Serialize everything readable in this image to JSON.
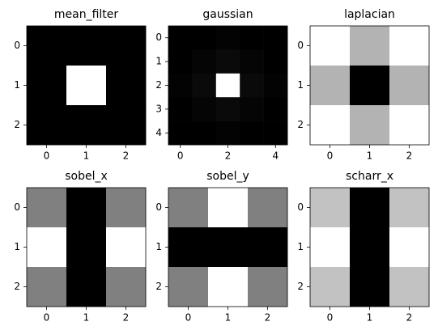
{
  "chart_data": [
    {
      "type": "heatmap",
      "title": "mean_filter",
      "colormap": "gray",
      "values": [
        [
          0,
          0,
          0
        ],
        [
          0,
          1,
          0
        ],
        [
          0,
          0,
          0
        ]
      ],
      "xlim": [
        -0.5,
        2.5
      ],
      "ylim": [
        2.5,
        -0.5
      ],
      "xticks": [
        0,
        1,
        2
      ],
      "yticks": [
        0,
        1,
        2
      ]
    },
    {
      "type": "heatmap",
      "title": "gaussian",
      "colormap": "gray",
      "values": [
        [
          0,
          0,
          0.01,
          0,
          0
        ],
        [
          0,
          0.02,
          0.04,
          0.02,
          0
        ],
        [
          0.01,
          0.04,
          1,
          0.04,
          0.01
        ],
        [
          0,
          0.02,
          0.04,
          0.02,
          0
        ],
        [
          0,
          0,
          0.01,
          0,
          0
        ]
      ],
      "xlim": [
        -0.5,
        4.5
      ],
      "ylim": [
        4.5,
        -0.5
      ],
      "xticks": [
        0,
        2,
        4
      ],
      "yticks": [
        0,
        1,
        2,
        3,
        4
      ]
    },
    {
      "type": "heatmap",
      "title": "laplacian",
      "colormap": "gray",
      "values": [
        [
          1,
          0.7,
          1
        ],
        [
          0.7,
          0,
          0.7
        ],
        [
          1,
          0.7,
          1
        ]
      ],
      "xlim": [
        -0.5,
        2.5
      ],
      "ylim": [
        2.5,
        -0.5
      ],
      "xticks": [
        0,
        1,
        2
      ],
      "yticks": [
        0,
        1,
        2
      ]
    },
    {
      "type": "heatmap",
      "title": "sobel_x",
      "colormap": "gray",
      "values": [
        [
          0.5,
          0,
          0.5
        ],
        [
          1,
          0,
          1
        ],
        [
          0.5,
          0,
          0.5
        ]
      ],
      "xlim": [
        -0.5,
        2.5
      ],
      "ylim": [
        2.5,
        -0.5
      ],
      "xticks": [
        0,
        1,
        2
      ],
      "yticks": [
        0,
        1,
        2
      ]
    },
    {
      "type": "heatmap",
      "title": "sobel_y",
      "colormap": "gray",
      "values": [
        [
          0.5,
          1,
          0.5
        ],
        [
          0,
          0,
          0
        ],
        [
          0.5,
          1,
          0.5
        ]
      ],
      "xlim": [
        -0.5,
        2.5
      ],
      "ylim": [
        2.5,
        -0.5
      ],
      "xticks": [
        0,
        1,
        2
      ],
      "yticks": [
        0,
        1,
        2
      ]
    },
    {
      "type": "heatmap",
      "title": "scharr_x",
      "colormap": "gray",
      "values": [
        [
          0.76,
          0,
          0.76
        ],
        [
          1,
          0,
          1
        ],
        [
          0.76,
          0,
          0.76
        ]
      ],
      "xlim": [
        -0.5,
        2.5
      ],
      "ylim": [
        2.5,
        -0.5
      ],
      "xticks": [
        0,
        1,
        2
      ],
      "yticks": [
        0,
        1,
        2
      ]
    }
  ]
}
